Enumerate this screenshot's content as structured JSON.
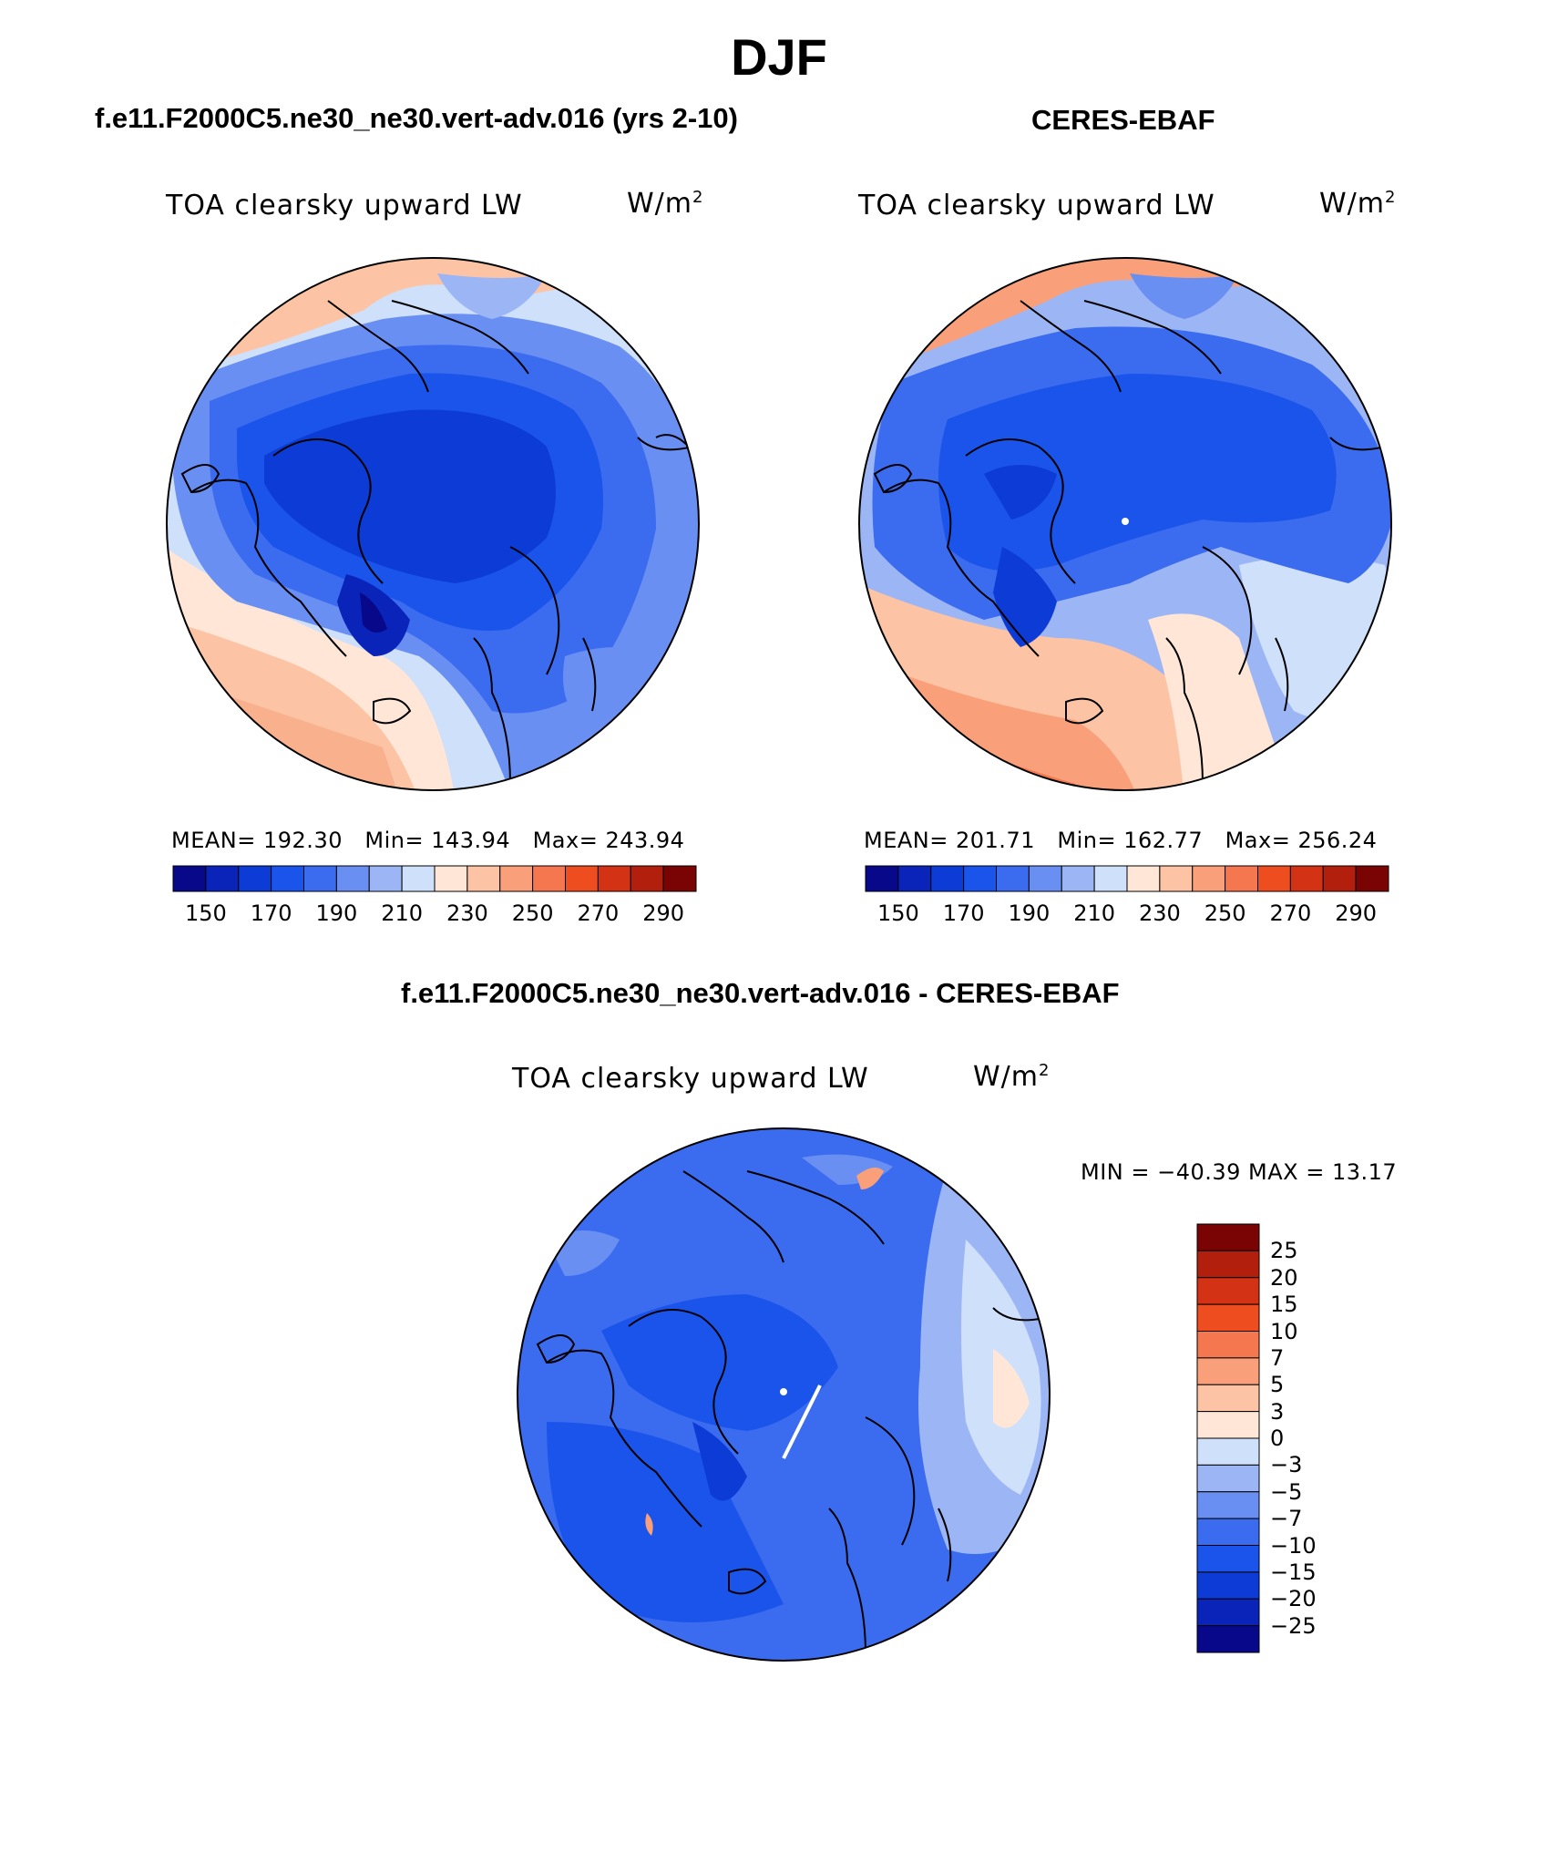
{
  "figure": {
    "season": "DJF",
    "top_left": {
      "case_title": "f.e11.F2000C5.ne30_ne30.vert-adv.016 (yrs 2-10)",
      "variable": "TOA clearsky upward LW",
      "units_base": "W/m",
      "units_exp": "2",
      "mean_label": "MEAN=",
      "mean": "192.30",
      "min_label": "Min=",
      "min": "143.94",
      "max_label": "Max=",
      "max": "243.94"
    },
    "top_right": {
      "case_title": "CERES-EBAF",
      "variable": "TOA clearsky upward LW",
      "units_base": "W/m",
      "units_exp": "2",
      "mean_label": "MEAN=",
      "mean": "201.71",
      "min_label": "Min=",
      "min": "162.77",
      "max_label": "Max=",
      "max": "256.24"
    },
    "bottom": {
      "case_title": "f.e11.F2000C5.ne30_ne30.vert-adv.016 - CERES-EBAF",
      "variable": "TOA clearsky upward LW",
      "units_base": "W/m",
      "units_exp": "2",
      "minmax_text": "MIN = −40.39 MAX =  13.17"
    }
  },
  "chart_data": [
    {
      "type": "heatmap",
      "projection": "north-polar-stereographic",
      "title": "f.e11.F2000C5.ne30_ne30.vert-adv.016 (yrs 2-10)",
      "variable": "TOA clearsky upward LW",
      "units": "W/m2",
      "mean": 192.3,
      "min": 143.94,
      "max": 243.94,
      "colorbar_ticks": [
        "150",
        "170",
        "190",
        "210",
        "230",
        "250",
        "270",
        "290"
      ],
      "levels": [
        150,
        160,
        170,
        180,
        190,
        200,
        210,
        220,
        230,
        240,
        250,
        260,
        270,
        280,
        290
      ],
      "colors": [
        "#08088a",
        "#0a23b8",
        "#0d3bd6",
        "#1a54ea",
        "#3b6cf0",
        "#6a8ff2",
        "#9cb6f5",
        "#cfe0fb",
        "#ffe6d6",
        "#fcc4a4",
        "#f9a07a",
        "#f5774f",
        "#ee4d20",
        "#d43214",
        "#b2200d",
        "#7a0303"
      ]
    },
    {
      "type": "heatmap",
      "projection": "north-polar-stereographic",
      "title": "CERES-EBAF",
      "variable": "TOA clearsky upward LW",
      "units": "W/m2",
      "mean": 201.71,
      "min": 162.77,
      "max": 256.24,
      "colorbar_ticks": [
        "150",
        "170",
        "190",
        "210",
        "230",
        "250",
        "270",
        "290"
      ],
      "levels": [
        150,
        160,
        170,
        180,
        190,
        200,
        210,
        220,
        230,
        240,
        250,
        260,
        270,
        280,
        290
      ],
      "colors": [
        "#08088a",
        "#0a23b8",
        "#0d3bd6",
        "#1a54ea",
        "#3b6cf0",
        "#6a8ff2",
        "#9cb6f5",
        "#cfe0fb",
        "#ffe6d6",
        "#fcc4a4",
        "#f9a07a",
        "#f5774f",
        "#ee4d20",
        "#d43214",
        "#b2200d",
        "#7a0303"
      ]
    },
    {
      "type": "heatmap",
      "projection": "north-polar-stereographic",
      "title": "f.e11.F2000C5.ne30_ne30.vert-adv.016 - CERES-EBAF",
      "variable": "TOA clearsky upward LW",
      "units": "W/m2",
      "min": -40.39,
      "max": 13.17,
      "colorbar_ticks": [
        "25",
        "20",
        "15",
        "10",
        "7",
        "5",
        "3",
        "0",
        "−3",
        "−5",
        "−7",
        "−10",
        "−15",
        "−20",
        "−25"
      ],
      "levels": [
        -25,
        -20,
        -15,
        -10,
        -7,
        -5,
        -3,
        0,
        3,
        5,
        7,
        10,
        15,
        20,
        25
      ],
      "colors": [
        "#08088a",
        "#0a23b8",
        "#0d3bd6",
        "#1a54ea",
        "#3b6cf0",
        "#6a8ff2",
        "#9cb6f5",
        "#cfe0fb",
        "#ffe6d6",
        "#fcc4a4",
        "#f9a07a",
        "#f5774f",
        "#ee4d20",
        "#d43214",
        "#b2200d",
        "#7a0303"
      ]
    }
  ]
}
